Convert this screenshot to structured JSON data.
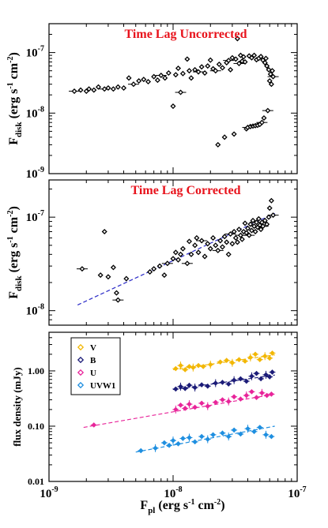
{
  "chart_data": [
    {
      "type": "scatter",
      "annotation": "Time Lag Uncorrected",
      "ylabel": "F",
      "ylabel_sub": "disk",
      "ylabel_units": "(erg s",
      "ylabel_exp1": "-1",
      "ylabel_cm": "cm",
      "ylabel_exp2": "-2",
      "ylabel_close": ")",
      "xscale": "log",
      "yscale": "log",
      "xlim": [
        1e-09,
        1e-07
      ],
      "ylim": [
        1e-09,
        3e-07
      ],
      "yticks": [
        {
          "value": 1e-09,
          "base": "10",
          "exp": "-9"
        },
        {
          "value": 1e-08,
          "base": "10",
          "exp": "-8"
        },
        {
          "value": 1e-07,
          "base": "10",
          "exp": "-7"
        }
      ],
      "color": "#000000",
      "points": [
        [
          1.6e-09,
          2.3e-08
        ],
        [
          1.8e-09,
          2.4e-08
        ],
        [
          2e-09,
          2.3e-08
        ],
        [
          2.1e-09,
          2.5e-08
        ],
        [
          2.3e-09,
          2.4e-08
        ],
        [
          2.5e-09,
          2.7e-08
        ],
        [
          2.8e-09,
          2.5e-08
        ],
        [
          3e-09,
          2.6e-08
        ],
        [
          3.3e-09,
          2.5e-08
        ],
        [
          3.6e-09,
          2.7e-08
        ],
        [
          4e-09,
          2.6e-08
        ],
        [
          4.4e-09,
          3.8e-08
        ],
        [
          4.8e-09,
          3e-08
        ],
        [
          5.3e-09,
          3.4e-08
        ],
        [
          5.8e-09,
          3.6e-08
        ],
        [
          6.3e-09,
          3.3e-08
        ],
        [
          7e-09,
          4e-08
        ],
        [
          7.5e-09,
          3.5e-08
        ],
        [
          8e-09,
          4.2e-08
        ],
        [
          8.6e-09,
          3.8e-08
        ],
        [
          9.2e-09,
          4.6e-08
        ],
        [
          1e-08,
          1.3e-08
        ],
        [
          1.05e-08,
          4.3e-08
        ],
        [
          1.1e-08,
          5.5e-08
        ],
        [
          1.15e-08,
          2.2e-08
        ],
        [
          1.2e-08,
          4.5e-08
        ],
        [
          1.3e-08,
          7.8e-08
        ],
        [
          1.35e-08,
          5e-08
        ],
        [
          1.4e-08,
          3.8e-08
        ],
        [
          1.5e-08,
          5.2e-08
        ],
        [
          1.6e-08,
          4.8e-08
        ],
        [
          1.7e-08,
          5.8e-08
        ],
        [
          1.8e-08,
          4.6e-08
        ],
        [
          1.9e-08,
          6e-08
        ],
        [
          2e-08,
          7.5e-08
        ],
        [
          2.1e-08,
          5.4e-08
        ],
        [
          2.2e-08,
          5e-08
        ],
        [
          2.3e-08,
          3e-09
        ],
        [
          2.35e-08,
          6.4e-08
        ],
        [
          2.5e-08,
          5.6e-08
        ],
        [
          2.6e-08,
          4e-09
        ],
        [
          2.7e-08,
          6.8e-08
        ],
        [
          2.8e-08,
          7.4e-08
        ],
        [
          2.9e-08,
          5.2e-08
        ],
        [
          3e-08,
          8.2e-08
        ],
        [
          3.1e-08,
          4.5e-09
        ],
        [
          3.2e-08,
          7.8e-08
        ],
        [
          3.3e-08,
          1.7e-07
        ],
        [
          3.4e-08,
          6.6e-08
        ],
        [
          3.5e-08,
          9e-08
        ],
        [
          3.6e-08,
          7.2e-08
        ],
        [
          3.7e-08,
          8.5e-08
        ],
        [
          3.8e-08,
          7e-08
        ],
        [
          3.9e-08,
          5.5e-09
        ],
        [
          4e-08,
          5.8e-09
        ],
        [
          4.1e-08,
          8.8e-08
        ],
        [
          4.2e-08,
          6e-09
        ],
        [
          4.3e-08,
          8.2e-08
        ],
        [
          4.4e-08,
          6.1e-09
        ],
        [
          4.5e-08,
          9e-08
        ],
        [
          4.6e-08,
          6.2e-09
        ],
        [
          4.7e-08,
          7.6e-08
        ],
        [
          4.8e-08,
          6.3e-09
        ],
        [
          4.9e-08,
          8e-08
        ],
        [
          5e-08,
          6.5e-09
        ],
        [
          5.1e-08,
          8.6e-08
        ],
        [
          5.2e-08,
          7e-09
        ],
        [
          5.3e-08,
          7.5e-08
        ],
        [
          5.4e-08,
          8.3e-09
        ],
        [
          5.5e-08,
          6.8e-08
        ],
        [
          5.6e-08,
          8e-08
        ],
        [
          5.7e-08,
          6e-08
        ],
        [
          5.8e-08,
          1.1e-08
        ],
        [
          5.9e-08,
          5.2e-08
        ],
        [
          6e-08,
          3.4e-08
        ],
        [
          6.1e-08,
          4.4e-08
        ],
        [
          6.2e-08,
          3e-08
        ],
        [
          6.3e-08,
          5e-08
        ],
        [
          6.4e-08,
          4e-08
        ]
      ]
    },
    {
      "type": "scatter",
      "annotation": "Time Lag Corrected",
      "ylabel": "F",
      "ylabel_sub": "disk",
      "ylabel_units": "(erg s",
      "ylabel_exp1": "-1",
      "ylabel_cm": "cm",
      "ylabel_exp2": "-2",
      "ylabel_close": ")",
      "xscale": "log",
      "yscale": "log",
      "xlim": [
        1e-09,
        1e-07
      ],
      "ylim": [
        7e-09,
        2.5e-07
      ],
      "yticks": [
        {
          "value": 1e-08,
          "base": "10",
          "exp": "-8"
        },
        {
          "value": 1e-07,
          "base": "10",
          "exp": "-7"
        }
      ],
      "color": "#000000",
      "fit": {
        "x": [
          1.7e-09,
          6.6e-08
        ],
        "y": [
          1.15e-08,
          1.1e-07
        ],
        "color": "#2c2cc8"
      },
      "points": [
        [
          1.85e-09,
          2.8e-08
        ],
        [
          2.6e-09,
          2.4e-08
        ],
        [
          2.8e-09,
          7e-08
        ],
        [
          3e-09,
          2.3e-08
        ],
        [
          3.3e-09,
          2.9e-08
        ],
        [
          3.5e-09,
          1.55e-08
        ],
        [
          3.6e-09,
          1.3e-08
        ],
        [
          4.2e-09,
          2.2e-08
        ],
        [
          6.5e-09,
          2.6e-08
        ],
        [
          7e-09,
          2.8e-08
        ],
        [
          7.8e-09,
          3e-08
        ],
        [
          8.5e-09,
          2.4e-08
        ],
        [
          9e-09,
          3.2e-08
        ],
        [
          1e-08,
          3.6e-08
        ],
        [
          1.05e-08,
          4.2e-08
        ],
        [
          1.1e-08,
          3.5e-08
        ],
        [
          1.15e-08,
          4e-08
        ],
        [
          1.2e-08,
          4.6e-08
        ],
        [
          1.3e-08,
          3.2e-08
        ],
        [
          1.35e-08,
          5.5e-08
        ],
        [
          1.4e-08,
          4e-08
        ],
        [
          1.5e-08,
          5e-08
        ],
        [
          1.55e-08,
          6e-08
        ],
        [
          1.6e-08,
          4.2e-08
        ],
        [
          1.7e-08,
          5.6e-08
        ],
        [
          1.8e-08,
          3.8e-08
        ],
        [
          1.9e-08,
          5.2e-08
        ],
        [
          2e-08,
          4.6e-08
        ],
        [
          2.1e-08,
          6e-08
        ],
        [
          2.2e-08,
          5e-08
        ],
        [
          2.3e-08,
          4.4e-08
        ],
        [
          2.4e-08,
          5.6e-08
        ],
        [
          2.5e-08,
          4.8e-08
        ],
        [
          2.6e-08,
          6.2e-08
        ],
        [
          2.7e-08,
          5.4e-08
        ],
        [
          2.8e-08,
          4e-08
        ],
        [
          2.9e-08,
          6.6e-08
        ],
        [
          3e-08,
          5.2e-08
        ],
        [
          3.1e-08,
          7e-08
        ],
        [
          3.2e-08,
          6e-08
        ],
        [
          3.3e-08,
          5.4e-08
        ],
        [
          3.4e-08,
          7.4e-08
        ],
        [
          3.5e-08,
          6.4e-08
        ],
        [
          3.6e-08,
          5.8e-08
        ],
        [
          3.7e-08,
          7e-08
        ],
        [
          3.8e-08,
          8.6e-08
        ],
        [
          3.9e-08,
          6.8e-08
        ],
        [
          4e-08,
          7.6e-08
        ],
        [
          4.1e-08,
          6.4e-08
        ],
        [
          4.2e-08,
          8.4e-08
        ],
        [
          4.3e-08,
          7.2e-08
        ],
        [
          4.4e-08,
          9.2e-08
        ],
        [
          4.5e-08,
          8e-08
        ],
        [
          4.6e-08,
          7e-08
        ],
        [
          4.7e-08,
          8.8e-08
        ],
        [
          4.8e-08,
          7.8e-08
        ],
        [
          4.9e-08,
          9.6e-08
        ],
        [
          5e-08,
          8.2e-08
        ],
        [
          5.1e-08,
          7.4e-08
        ],
        [
          5.2e-08,
          8.8e-08
        ],
        [
          5.3e-08,
          8e-08
        ],
        [
          5.5e-08,
          9.2e-08
        ],
        [
          5.7e-08,
          8.4e-08
        ],
        [
          5.9e-08,
          1e-07
        ],
        [
          6e-08,
          1.25e-07
        ],
        [
          6.2e-08,
          1.5e-07
        ],
        [
          6.4e-08,
          1.05e-07
        ]
      ]
    },
    {
      "type": "scatter",
      "ylabel": "flux density (mJy)",
      "xlabel_base": "F",
      "xlabel_sub": "pl",
      "xlabel_units": "(erg s",
      "xlabel_exp1": "-1",
      "xlabel_cm": "cm",
      "xlabel_exp2": "-2",
      "xlabel_close": ")",
      "xscale": "log",
      "yscale": "log",
      "xlim": [
        1e-09,
        1e-07
      ],
      "ylim": [
        0.01,
        5.0
      ],
      "xticks": [
        {
          "value": 1e-09,
          "base": "10",
          "exp": "-9"
        },
        {
          "value": 1e-08,
          "base": "10",
          "exp": "-8"
        },
        {
          "value": 1e-07,
          "base": "10",
          "exp": "-7"
        }
      ],
      "yticks": [
        {
          "value": 0.01,
          "label": "0.01"
        },
        {
          "value": 0.1,
          "label": "0.10"
        },
        {
          "value": 1.0,
          "label": "1.00"
        }
      ],
      "legend_position": "top-left",
      "series": [
        {
          "name": "V",
          "color": "#f2b705",
          "fit": {
            "x": [
              1e-08,
              6.6e-08
            ],
            "y": [
              1.05,
              1.95
            ]
          },
          "points": [
            [
              1.05e-08,
              1.1
            ],
            [
              1.15e-08,
              1.25
            ],
            [
              1.25e-08,
              1.05
            ],
            [
              1.35e-08,
              1.2
            ],
            [
              1.45e-08,
              1.15
            ],
            [
              1.6e-08,
              1.25
            ],
            [
              1.75e-08,
              1.2
            ],
            [
              2e-08,
              1.3
            ],
            [
              2.4e-08,
              1.45
            ],
            [
              2.7e-08,
              1.55
            ],
            [
              3e-08,
              1.4
            ],
            [
              3.4e-08,
              1.6
            ],
            [
              3.8e-08,
              1.5
            ],
            [
              4.2e-08,
              1.75
            ],
            [
              4.6e-08,
              2.0
            ],
            [
              5e-08,
              1.6
            ],
            [
              5.5e-08,
              1.85
            ],
            [
              6e-08,
              1.7
            ],
            [
              6.3e-08,
              2.1
            ]
          ]
        },
        {
          "name": "B",
          "color": "#1c1c78",
          "fit": {
            "x": [
              1e-08,
              6.6e-08
            ],
            "y": [
              0.46,
              0.84
            ]
          },
          "points": [
            [
              1.05e-08,
              0.47
            ],
            [
              1.15e-08,
              0.52
            ],
            [
              1.25e-08,
              0.48
            ],
            [
              1.35e-08,
              0.55
            ],
            [
              1.5e-08,
              0.5
            ],
            [
              1.7e-08,
              0.56
            ],
            [
              1.9e-08,
              0.53
            ],
            [
              2.2e-08,
              0.6
            ],
            [
              2.5e-08,
              0.62
            ],
            [
              2.8e-08,
              0.58
            ],
            [
              3.1e-08,
              0.68
            ],
            [
              3.5e-08,
              0.72
            ],
            [
              3.9e-08,
              0.65
            ],
            [
              4.3e-08,
              0.8
            ],
            [
              4.7e-08,
              0.9
            ],
            [
              5.1e-08,
              0.72
            ],
            [
              5.6e-08,
              0.85
            ],
            [
              6e-08,
              0.78
            ],
            [
              6.3e-08,
              0.95
            ]
          ]
        },
        {
          "name": "U",
          "color": "#e8259a",
          "fit": {
            "x": [
              1.9e-09,
              6.6e-08
            ],
            "y": [
              0.095,
              0.38
            ]
          },
          "points": [
            [
              2.3e-09,
              0.105
            ],
            [
              1.05e-08,
              0.2
            ],
            [
              1.15e-08,
              0.24
            ],
            [
              1.25e-08,
              0.21
            ],
            [
              1.35e-08,
              0.25
            ],
            [
              1.5e-08,
              0.22
            ],
            [
              1.7e-08,
              0.26
            ],
            [
              1.9e-08,
              0.23
            ],
            [
              2.2e-08,
              0.27
            ],
            [
              2.5e-08,
              0.3
            ],
            [
              2.8e-08,
              0.28
            ],
            [
              3.1e-08,
              0.34
            ],
            [
              3.5e-08,
              0.31
            ],
            [
              3.9e-08,
              0.36
            ],
            [
              4.3e-08,
              0.42
            ],
            [
              4.7e-08,
              0.33
            ],
            [
              5.2e-08,
              0.4
            ],
            [
              5.7e-08,
              0.36
            ],
            [
              6.2e-08,
              0.38
            ]
          ]
        },
        {
          "name": "UVW1",
          "color": "#1f8fe0",
          "fit": {
            "x": [
              5e-09,
              6.6e-08
            ],
            "y": [
              0.034,
              0.1
            ]
          },
          "points": [
            [
              5.5e-09,
              0.036
            ],
            [
              7.2e-09,
              0.04
            ],
            [
              8.5e-09,
              0.05
            ],
            [
              9.3e-09,
              0.045
            ],
            [
              1e-08,
              0.055
            ],
            [
              1.1e-08,
              0.048
            ],
            [
              1.2e-08,
              0.06
            ],
            [
              1.35e-08,
              0.062
            ],
            [
              1.5e-08,
              0.052
            ],
            [
              1.7e-08,
              0.065
            ],
            [
              1.9e-08,
              0.058
            ],
            [
              2.1e-08,
              0.07
            ],
            [
              2.5e-08,
              0.075
            ],
            [
              2.8e-08,
              0.065
            ],
            [
              3.1e-08,
              0.085
            ],
            [
              3.5e-08,
              0.072
            ],
            [
              4e-08,
              0.09
            ],
            [
              4.5e-08,
              0.08
            ],
            [
              5e-08,
              0.095
            ],
            [
              5.6e-08,
              0.07
            ],
            [
              6.2e-08,
              0.065
            ]
          ]
        }
      ]
    }
  ]
}
